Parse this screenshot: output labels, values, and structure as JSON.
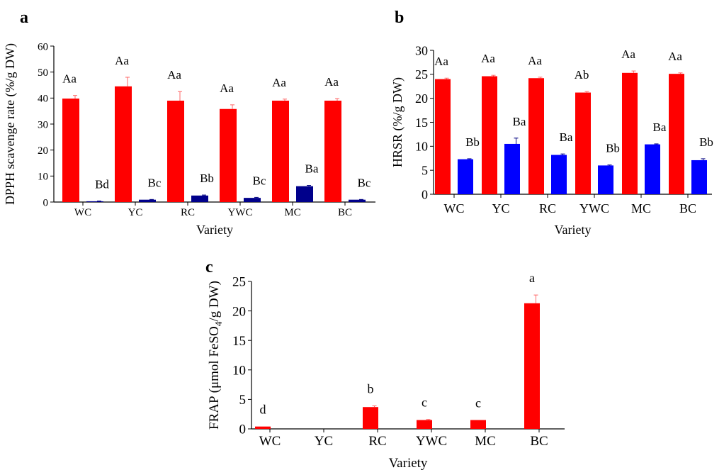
{
  "chart_data": [
    {
      "panel": "a",
      "type": "bar",
      "xlabel": "Variety",
      "ylabel": "DPPH scavenge rate (%/g DW)",
      "ylim": [
        0,
        60
      ],
      "yticks": [
        0,
        10,
        20,
        30,
        40,
        50,
        60
      ],
      "categories": [
        "WC",
        "YC",
        "RC",
        "YWC",
        "MC",
        "BC"
      ],
      "series": [
        {
          "color": "#ff0000",
          "values": [
            39.8,
            44.5,
            39.0,
            35.8,
            39.0,
            39.0
          ],
          "errors": [
            1.2,
            3.5,
            3.5,
            1.6,
            0.6,
            0.8
          ],
          "labels": [
            "Aa",
            "Aa",
            "Aa",
            "Aa",
            "Aa",
            "Aa"
          ]
        },
        {
          "color": "#00008b",
          "values": [
            0.3,
            0.9,
            2.5,
            1.6,
            6.1,
            0.9
          ],
          "errors": [
            0.1,
            0.1,
            0.2,
            0.2,
            0.3,
            0.1
          ],
          "labels": [
            "Bd",
            "Bc",
            "Bb",
            "Bc",
            "Ba",
            "Bc"
          ]
        }
      ]
    },
    {
      "panel": "b",
      "type": "bar",
      "xlabel": "Variety",
      "ylabel": "HRSR (%/g DW)",
      "ylim": [
        0,
        30
      ],
      "yticks": [
        0,
        5,
        10,
        15,
        20,
        25,
        30
      ],
      "categories": [
        "WC",
        "YC",
        "RC",
        "YWC",
        "MC",
        "BC"
      ],
      "series": [
        {
          "color": "#ff0000",
          "values": [
            24.0,
            24.6,
            24.2,
            21.2,
            25.3,
            25.1
          ],
          "errors": [
            0.2,
            0.2,
            0.2,
            0.2,
            0.4,
            0.2
          ],
          "labels": [
            "Aa",
            "Aa",
            "Aa",
            "Ab",
            "Aa",
            "Aa"
          ]
        },
        {
          "color": "#0000ff",
          "values": [
            7.3,
            10.5,
            8.2,
            6.0,
            10.4,
            7.1
          ],
          "errors": [
            0.1,
            1.2,
            0.2,
            0.1,
            0.1,
            0.3
          ],
          "labels": [
            "Bb",
            "Ba",
            "Ba",
            "Bb",
            "Ba",
            "Bb"
          ]
        }
      ]
    },
    {
      "panel": "c",
      "type": "bar",
      "xlabel": "Variety",
      "ylabel_main": "FRAP (μmol FeSO",
      "ylabel_sub": "4",
      "ylabel_end": "/g DW)",
      "ylim": [
        0,
        25
      ],
      "yticks": [
        0,
        5,
        10,
        15,
        20,
        25
      ],
      "categories": [
        "WC",
        "YC",
        "RC",
        "YWC",
        "MC",
        "BC"
      ],
      "series": [
        {
          "color": "#ff0000",
          "values": [
            0.4,
            0,
            3.7,
            1.5,
            1.5,
            21.3
          ],
          "errors": [
            0,
            0,
            0.2,
            0.1,
            0,
            1.4
          ],
          "labels": [
            "d",
            "",
            "b",
            "c",
            "c",
            "a"
          ]
        }
      ]
    }
  ]
}
